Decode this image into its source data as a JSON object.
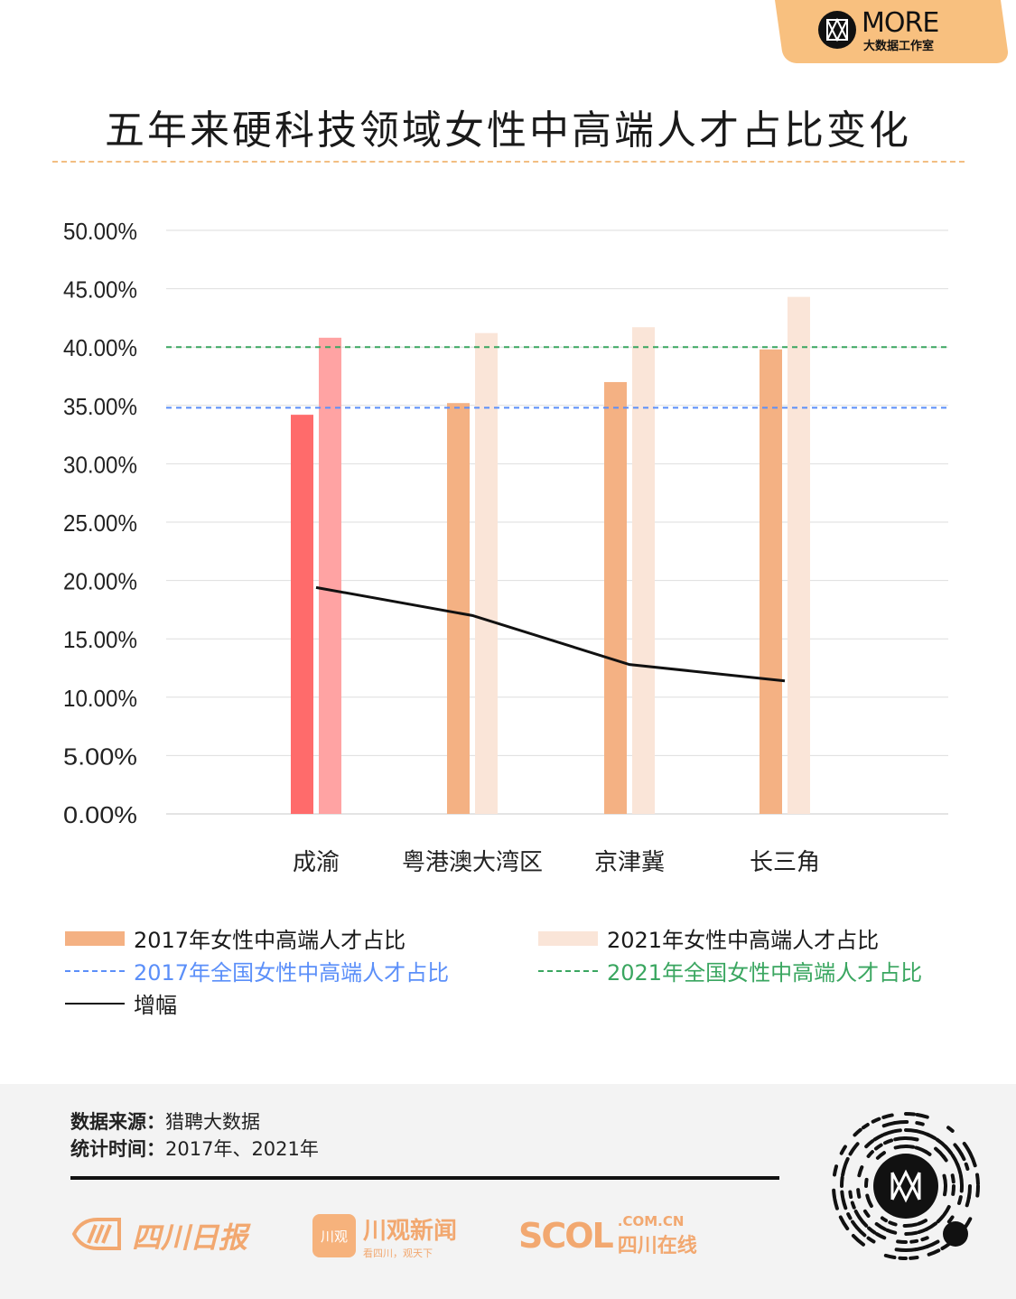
{
  "brand": {
    "name": "MORE",
    "subtitle": "大数据工作室",
    "logo_icon": "m-monogram-icon",
    "tab_color": "#f8c07f"
  },
  "title": "五年来硬科技领域女性中高端人才占比变化",
  "chart_data": {
    "type": "bar",
    "categories": [
      "成渝",
      "粤港澳大湾区",
      "京津冀",
      "长三角"
    ],
    "series": [
      {
        "name": "2017年女性中高端人才占比",
        "type": "bar",
        "values": [
          34.2,
          35.2,
          37.0,
          39.8
        ],
        "color": "#f4b183",
        "highlight_color": "#ff6b6b"
      },
      {
        "name": "2021年女性中高端人才占比",
        "type": "bar",
        "values": [
          40.8,
          41.2,
          41.7,
          44.3
        ],
        "color": "#fae5d8",
        "highlight_color": "#ffa3a3"
      },
      {
        "name": "增幅",
        "type": "line",
        "values": [
          19.4,
          17.0,
          12.8,
          11.4
        ],
        "color": "#111111"
      }
    ],
    "reference_lines": [
      {
        "name": "2017年全国女性中高端人才占比",
        "value": 34.8,
        "color": "#5b8ff9"
      },
      {
        "name": "2021年全国女性中高端人才占比",
        "value": 40.0,
        "color": "#3aa660"
      }
    ],
    "highlight_category": "成渝",
    "yticks": [
      "0.00%",
      "5.00%",
      "10.00%",
      "15.00%",
      "20.00%",
      "25.00%",
      "30.00%",
      "35.00%",
      "40.00%",
      "45.00%",
      "50.00%"
    ],
    "ylim": [
      0,
      50
    ],
    "grid": true,
    "legend_position": "bottom"
  },
  "footer": {
    "source_label": "数据来源：",
    "source_value": "猎聘大数据",
    "time_label": "统计时间：",
    "time_value": "2017年、2021年",
    "partners": [
      {
        "name": "四川日报",
        "icon": "sichuan-daily-logo-icon"
      },
      {
        "name": "川观新闻",
        "badge": "川观",
        "tagline": "看四川，观天下"
      },
      {
        "name": "SCOL",
        "domain": ".COM.CN",
        "sub": "四川在线"
      }
    ],
    "qr_icon": "mini-program-qr-icon"
  }
}
